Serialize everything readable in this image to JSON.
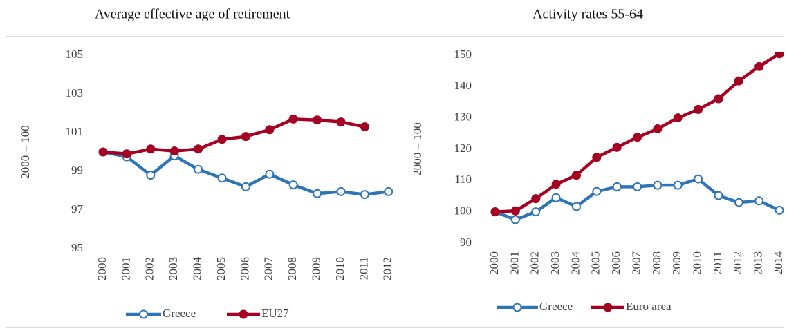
{
  "chart_data": [
    {
      "type": "line",
      "title": "Average effective age of retirement",
      "y_label": "2000 = 100",
      "categories": [
        "2000",
        "2001",
        "2002",
        "2003",
        "2004",
        "2005",
        "2006",
        "2007",
        "2008",
        "2009",
        "2010",
        "2011",
        "2012"
      ],
      "series": [
        {
          "name": "Greece",
          "color": "#2e75b6",
          "values": [
            100,
            99.75,
            98.8,
            99.8,
            99.1,
            98.65,
            98.2,
            98.85,
            98.3,
            97.85,
            97.95,
            97.8,
            97.95
          ]
        },
        {
          "name": "EU27",
          "color": "#a50021",
          "values": [
            100,
            99.9,
            100.15,
            100.05,
            100.15,
            100.65,
            100.8,
            101.15,
            101.7,
            101.65,
            101.55,
            101.3,
            null
          ]
        }
      ],
      "ylim": [
        95,
        105
      ],
      "yticks": [
        95,
        97,
        99,
        101,
        103,
        105
      ],
      "grid": false,
      "legend": "bottom"
    },
    {
      "type": "line",
      "title": "Activity rates 55-64",
      "y_label": "2000 = 100",
      "categories": [
        "2000",
        "2001",
        "2002",
        "2003",
        "2004",
        "2005",
        "2006",
        "2007",
        "2008",
        "2009",
        "2010",
        "2011",
        "2012",
        "2013",
        "2014"
      ],
      "series": [
        {
          "name": "Greece",
          "color": "#2e75b6",
          "values": [
            100,
            97.5,
            100,
            104.5,
            101.7,
            106.5,
            108,
            108,
            108.5,
            108.5,
            110.5,
            105.2,
            103,
            103.5,
            100.5
          ]
        },
        {
          "name": "Euro area",
          "color": "#a50021",
          "values": [
            100,
            100.3,
            104.2,
            108.8,
            111.7,
            117.4,
            120.6,
            123.8,
            126.5,
            130,
            132.7,
            136.1,
            141.8,
            146.4,
            150.5
          ]
        }
      ],
      "ylim": [
        90,
        150
      ],
      "yticks": [
        90,
        100,
        110,
        120,
        130,
        140,
        150
      ],
      "grid": false,
      "legend": "bottom"
    }
  ]
}
